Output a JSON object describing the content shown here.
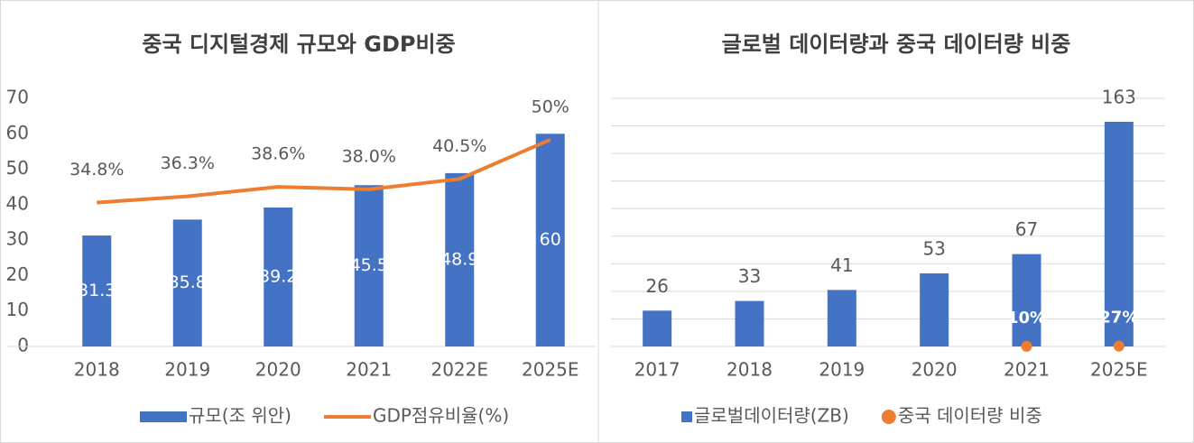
{
  "chart_data": [
    {
      "type": "bar",
      "title": "중국 디지털경제 규모와 GDP비중",
      "categories": [
        "2018",
        "2019",
        "2020",
        "2021",
        "2022E",
        "2025E"
      ],
      "series": [
        {
          "name": "규모(조 위안)",
          "type": "bar",
          "color": "#4472c4",
          "values": [
            31.3,
            35.8,
            39.2,
            45.5,
            48.9,
            60
          ]
        },
        {
          "name": "GDP점유비율(%)",
          "type": "line",
          "axis": "y2",
          "color": "#ed7d31",
          "values": [
            34.8,
            36.3,
            38.6,
            38.0,
            40.5,
            50
          ],
          "value_labels": [
            "34.8%",
            "36.3%",
            "38.6%",
            "38.0%",
            "40.5%",
            "50%"
          ]
        }
      ],
      "ylim": [
        0,
        70
      ],
      "yticks": [
        0,
        10,
        20,
        30,
        40,
        50,
        60,
        70
      ],
      "y2lim": [
        0,
        60
      ],
      "grid": false,
      "tick_labels": true,
      "legend": "bottom"
    },
    {
      "type": "bar",
      "title": "글로벌 데이터량과 중국 데이터량 비중",
      "categories": [
        "2017",
        "2018",
        "2019",
        "2020",
        "2021",
        "2025E"
      ],
      "series": [
        {
          "name": "글로벌데이터량(ZB)",
          "type": "bar",
          "color": "#4472c4",
          "values": [
            26,
            33,
            41,
            53,
            67,
            163
          ]
        },
        {
          "name": "중국 데이터량 비중",
          "type": "scatter",
          "color": "#ed7d31",
          "values": [
            null,
            null,
            null,
            null,
            0.1,
            0.27
          ],
          "value_labels": [
            null,
            null,
            null,
            null,
            "10%",
            "27%"
          ]
        }
      ],
      "ylim": [
        0,
        180
      ],
      "yticks": [
        0,
        20,
        40,
        60,
        80,
        100,
        120,
        140,
        160,
        180
      ],
      "grid": true,
      "tick_labels": false,
      "legend": "bottom"
    }
  ]
}
